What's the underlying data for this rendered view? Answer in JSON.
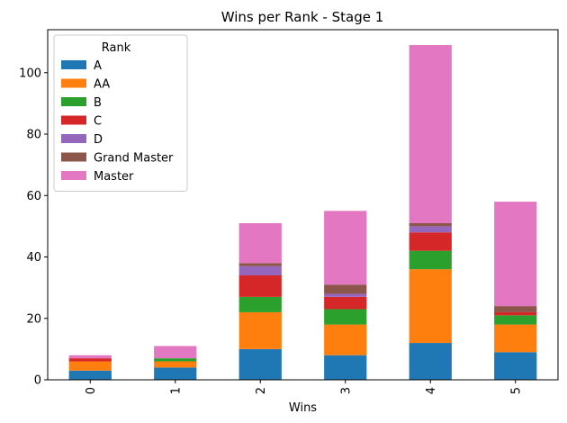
{
  "chart_data": {
    "type": "bar",
    "stacked": true,
    "title": "Wins per Rank - Stage 1",
    "xlabel": "Wins",
    "ylabel": "",
    "ylim": [
      0,
      114
    ],
    "yticks": [
      0,
      20,
      40,
      60,
      80,
      100
    ],
    "categories": [
      "0",
      "1",
      "2",
      "3",
      "4",
      "5"
    ],
    "legend": {
      "title": "Rank",
      "placement": "top-left"
    },
    "series": [
      {
        "name": "A",
        "color": "#1f77b4",
        "values": [
          3,
          4,
          10,
          8,
          12,
          9
        ]
      },
      {
        "name": "AA",
        "color": "#ff7f0e",
        "values": [
          3,
          2,
          12,
          10,
          24,
          9
        ]
      },
      {
        "name": "B",
        "color": "#2ca02c",
        "values": [
          0,
          1,
          5,
          5,
          6,
          3
        ]
      },
      {
        "name": "C",
        "color": "#d62728",
        "values": [
          1,
          0,
          7,
          4,
          6,
          1
        ]
      },
      {
        "name": "D",
        "color": "#9467bd",
        "values": [
          0,
          0,
          3,
          1,
          2,
          0
        ]
      },
      {
        "name": "Grand Master",
        "color": "#8c564b",
        "values": [
          0,
          0,
          1,
          3,
          1,
          2
        ]
      },
      {
        "name": "Master",
        "color": "#e377c2",
        "values": [
          1,
          4,
          13,
          24,
          58,
          34
        ]
      }
    ]
  }
}
